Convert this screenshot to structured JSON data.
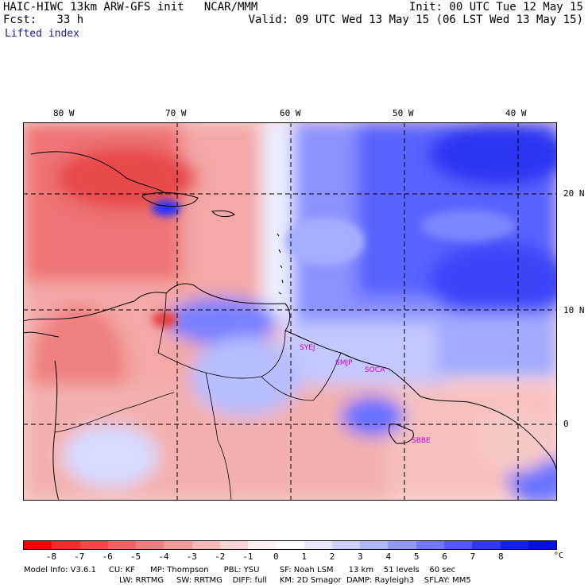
{
  "header": {
    "model_title": "HAIC-HIWC 13km ARW-GFS init   NCAR/MMM",
    "init": "Init: 00 UTC Tue 12 May 15",
    "forecast": "Fcst:   33 h",
    "valid": "Valid: 09 UTC Wed 13 May 15 (06 LST Wed 13 May 15)",
    "field": "Lifted index"
  },
  "map": {
    "lon_labels": [
      "80 W",
      "70 W",
      "60 W",
      "50 W",
      "40 W"
    ],
    "lat_labels": [
      "20 N",
      "10 N",
      "0"
    ],
    "stations": [
      "SYEJ",
      "SMJP",
      "SOCA",
      "SBBE"
    ]
  },
  "colorbar": {
    "ticks": [
      "-8",
      "-7",
      "-6",
      "-5",
      "-4",
      "-3",
      "-2",
      "-1",
      "0",
      "1",
      "2",
      "3",
      "4",
      "5",
      "6",
      "7",
      "8"
    ],
    "unit": "°C",
    "colors": [
      "#ff0000",
      "#ff2a2a",
      "#f64848",
      "#f06464",
      "#ee7e7e",
      "#f29a9a",
      "#f6b8b8",
      "#fad4d4",
      "#fff0f0",
      "#ffffff",
      "#eaeaff",
      "#cfd3ff",
      "#b2b8ff",
      "#9299ff",
      "#7278ff",
      "#5059ff",
      "#3038ff",
      "#1020f0",
      "#0010e0"
    ]
  },
  "footer": {
    "line1": "Model Info: V3.6.1     CU: KF      MP: Thompson      PBL: YSU        SF: Noah LSM      13 km    51 levels    60 sec",
    "line2": "LW: RRTMG     SW: RRTMG    DIFF: full     KM: 2D Smagor  DAMP: Rayleigh3    SFLAY: MM5"
  }
}
